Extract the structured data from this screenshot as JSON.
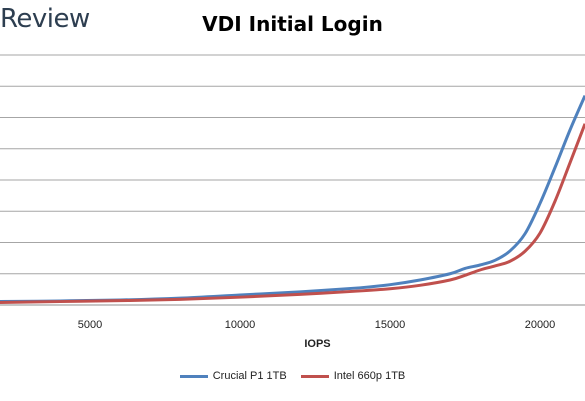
{
  "brand": "Review",
  "chart_data": {
    "type": "line",
    "title": "VDI Initial Login",
    "xlabel": "IOPS",
    "ylabel": "",
    "xlim": [
      2000,
      21500
    ],
    "ylim": [
      0,
      8
    ],
    "xticks": [
      5000,
      10000,
      15000,
      20000
    ],
    "grid": true,
    "legend_position": "bottom",
    "series": [
      {
        "name": "Crucial P1 1TB",
        "color": "#4f81bd",
        "points": [
          [
            2000,
            0.11
          ],
          [
            4000,
            0.13
          ],
          [
            6000,
            0.16
          ],
          [
            8000,
            0.22
          ],
          [
            10000,
            0.32
          ],
          [
            12000,
            0.42
          ],
          [
            14000,
            0.55
          ],
          [
            15000,
            0.65
          ],
          [
            16000,
            0.8
          ],
          [
            17000,
            1.0
          ],
          [
            17500,
            1.17
          ],
          [
            18000,
            1.28
          ],
          [
            18500,
            1.43
          ],
          [
            19000,
            1.73
          ],
          [
            19500,
            2.28
          ],
          [
            20000,
            3.25
          ],
          [
            20500,
            4.4
          ],
          [
            21000,
            5.6
          ],
          [
            21500,
            6.7
          ]
        ]
      },
      {
        "name": "Intel 660p 1TB",
        "color": "#c0504d",
        "points": [
          [
            2000,
            0.08
          ],
          [
            4000,
            0.11
          ],
          [
            6000,
            0.14
          ],
          [
            8000,
            0.18
          ],
          [
            10000,
            0.25
          ],
          [
            12000,
            0.34
          ],
          [
            14000,
            0.45
          ],
          [
            15000,
            0.52
          ],
          [
            16000,
            0.63
          ],
          [
            17000,
            0.8
          ],
          [
            17500,
            0.95
          ],
          [
            18000,
            1.12
          ],
          [
            18500,
            1.25
          ],
          [
            19000,
            1.4
          ],
          [
            19500,
            1.72
          ],
          [
            20000,
            2.3
          ],
          [
            20500,
            3.32
          ],
          [
            21000,
            4.55
          ],
          [
            21500,
            5.8
          ]
        ]
      }
    ]
  }
}
